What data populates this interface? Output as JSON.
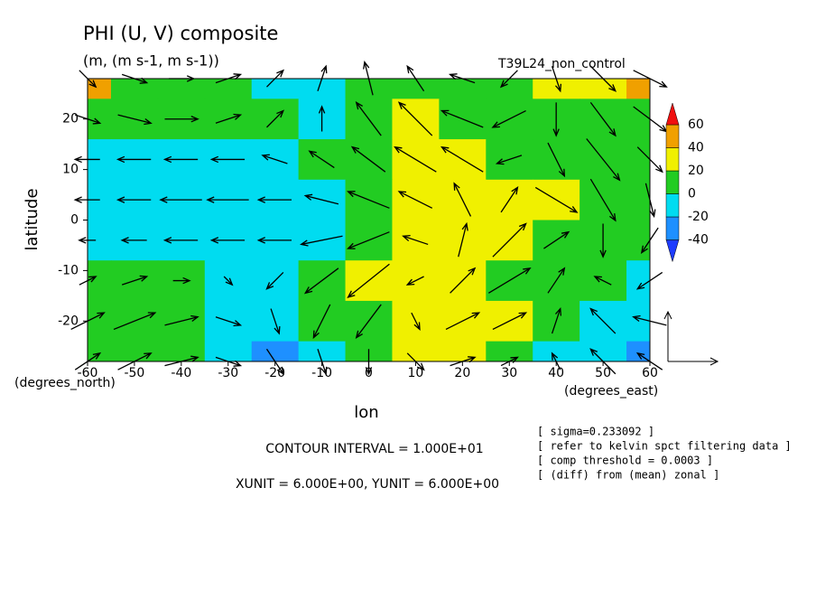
{
  "chart_data": {
    "type": "contour_vector",
    "title": "PHI (U, V) composite",
    "subtitle": "(m, (m s-1, m s-1))",
    "tag": "T39L24_non_control",
    "xlabel": "lon",
    "ylabel": "latitude",
    "xunit_label": "(degrees_east)",
    "yunit_label": "(degrees_north)",
    "xlim": [
      -60,
      60
    ],
    "ylim": [
      -28,
      28
    ],
    "xticks": [
      -60,
      -50,
      -40,
      -30,
      -20,
      -10,
      0,
      10,
      20,
      30,
      40,
      50,
      60
    ],
    "yticks": [
      -20,
      -10,
      0,
      10,
      20
    ],
    "lons": [
      -60,
      -50,
      -40,
      -30,
      -20,
      -10,
      0,
      10,
      20,
      30,
      40,
      50,
      60
    ],
    "lats": [
      28,
      20,
      12,
      4,
      -4,
      -12,
      -20,
      -28
    ],
    "field": [
      [
        45,
        10,
        10,
        5,
        -10,
        -10,
        5,
        10,
        10,
        10,
        25,
        30,
        45
      ],
      [
        10,
        5,
        5,
        10,
        5,
        -5,
        5,
        25,
        10,
        10,
        10,
        10,
        10
      ],
      [
        -10,
        -10,
        -15,
        -10,
        -5,
        5,
        10,
        30,
        25,
        15,
        10,
        10,
        10
      ],
      [
        -10,
        -15,
        -15,
        -15,
        -10,
        -5,
        5,
        25,
        30,
        25,
        20,
        10,
        5
      ],
      [
        -10,
        -15,
        -15,
        -15,
        -10,
        -5,
        10,
        25,
        30,
        25,
        15,
        5,
        5
      ],
      [
        5,
        10,
        5,
        -5,
        -10,
        5,
        20,
        30,
        25,
        15,
        5,
        5,
        -5
      ],
      [
        5,
        10,
        10,
        -5,
        -10,
        5,
        15,
        25,
        25,
        20,
        5,
        -10,
        -20
      ],
      [
        5,
        10,
        5,
        -10,
        -25,
        -5,
        10,
        25,
        20,
        15,
        -5,
        -15,
        -25
      ]
    ],
    "u": [
      [
        2,
        3,
        3,
        3,
        2,
        1,
        -1,
        -2,
        -3,
        -2,
        1,
        3,
        4
      ],
      [
        3,
        4,
        4,
        3,
        2,
        0,
        -3,
        -4,
        -5,
        -4,
        0,
        3,
        4
      ],
      [
        -3,
        -4,
        -4,
        -4,
        -3,
        -3,
        -4,
        -5,
        -5,
        -3,
        2,
        4,
        3
      ],
      [
        -3,
        -4,
        -5,
        -5,
        -4,
        -4,
        -5,
        -4,
        -2,
        2,
        5,
        3,
        1
      ],
      [
        -2,
        -3,
        -4,
        -4,
        -4,
        -5,
        -5,
        -3,
        1,
        4,
        3,
        0,
        -2
      ],
      [
        2,
        3,
        2,
        1,
        -2,
        -4,
        -5,
        -2,
        3,
        5,
        2,
        -2,
        -3
      ],
      [
        4,
        5,
        4,
        3,
        1,
        -2,
        -3,
        1,
        4,
        4,
        1,
        -3,
        -4
      ],
      [
        3,
        4,
        4,
        3,
        2,
        1,
        0,
        2,
        3,
        2,
        -1,
        -3,
        -3
      ]
    ],
    "v": [
      [
        -2,
        -1,
        0,
        1,
        2,
        3,
        4,
        3,
        1,
        -2,
        -3,
        -3,
        -2
      ],
      [
        -1,
        -1,
        0,
        1,
        2,
        3,
        4,
        4,
        2,
        -2,
        -4,
        -4,
        -3
      ],
      [
        0,
        0,
        0,
        0,
        1,
        2,
        3,
        3,
        3,
        -1,
        -4,
        -5,
        -3
      ],
      [
        0,
        0,
        0,
        0,
        0,
        1,
        2,
        2,
        4,
        3,
        -3,
        -5,
        -4
      ],
      [
        0,
        0,
        0,
        0,
        0,
        -1,
        -2,
        1,
        4,
        4,
        2,
        -4,
        -3
      ],
      [
        1,
        1,
        0,
        -1,
        -2,
        -3,
        -4,
        -1,
        3,
        3,
        3,
        1,
        -2
      ],
      [
        2,
        2,
        1,
        -1,
        -3,
        -4,
        -4,
        -2,
        2,
        2,
        3,
        3,
        1
      ],
      [
        2,
        2,
        1,
        -1,
        -3,
        -3,
        -3,
        -2,
        1,
        1,
        2,
        3,
        2
      ]
    ],
    "levels": [
      -40,
      -20,
      0,
      20,
      40,
      60
    ],
    "level_colors": [
      "#1e3cff",
      "#1e90ff",
      "#00dcf0",
      "#22cc22",
      "#f0f000",
      "#f0a000",
      "#f01010"
    ],
    "contour_interval_text": "CONTOUR INTERVAL = 1.000E+01",
    "unit_text": "XUNIT = 6.000E+00, YUNIT = 6.000E+00",
    "xunit": 6,
    "yunit": 6,
    "notes": [
      "[ sigma=0.233092 ]",
      "[ refer to kelvin spct filtering data ]",
      "[ comp threshold = 0.0003 ]",
      "[ (diff) from (mean) zonal ]"
    ]
  }
}
